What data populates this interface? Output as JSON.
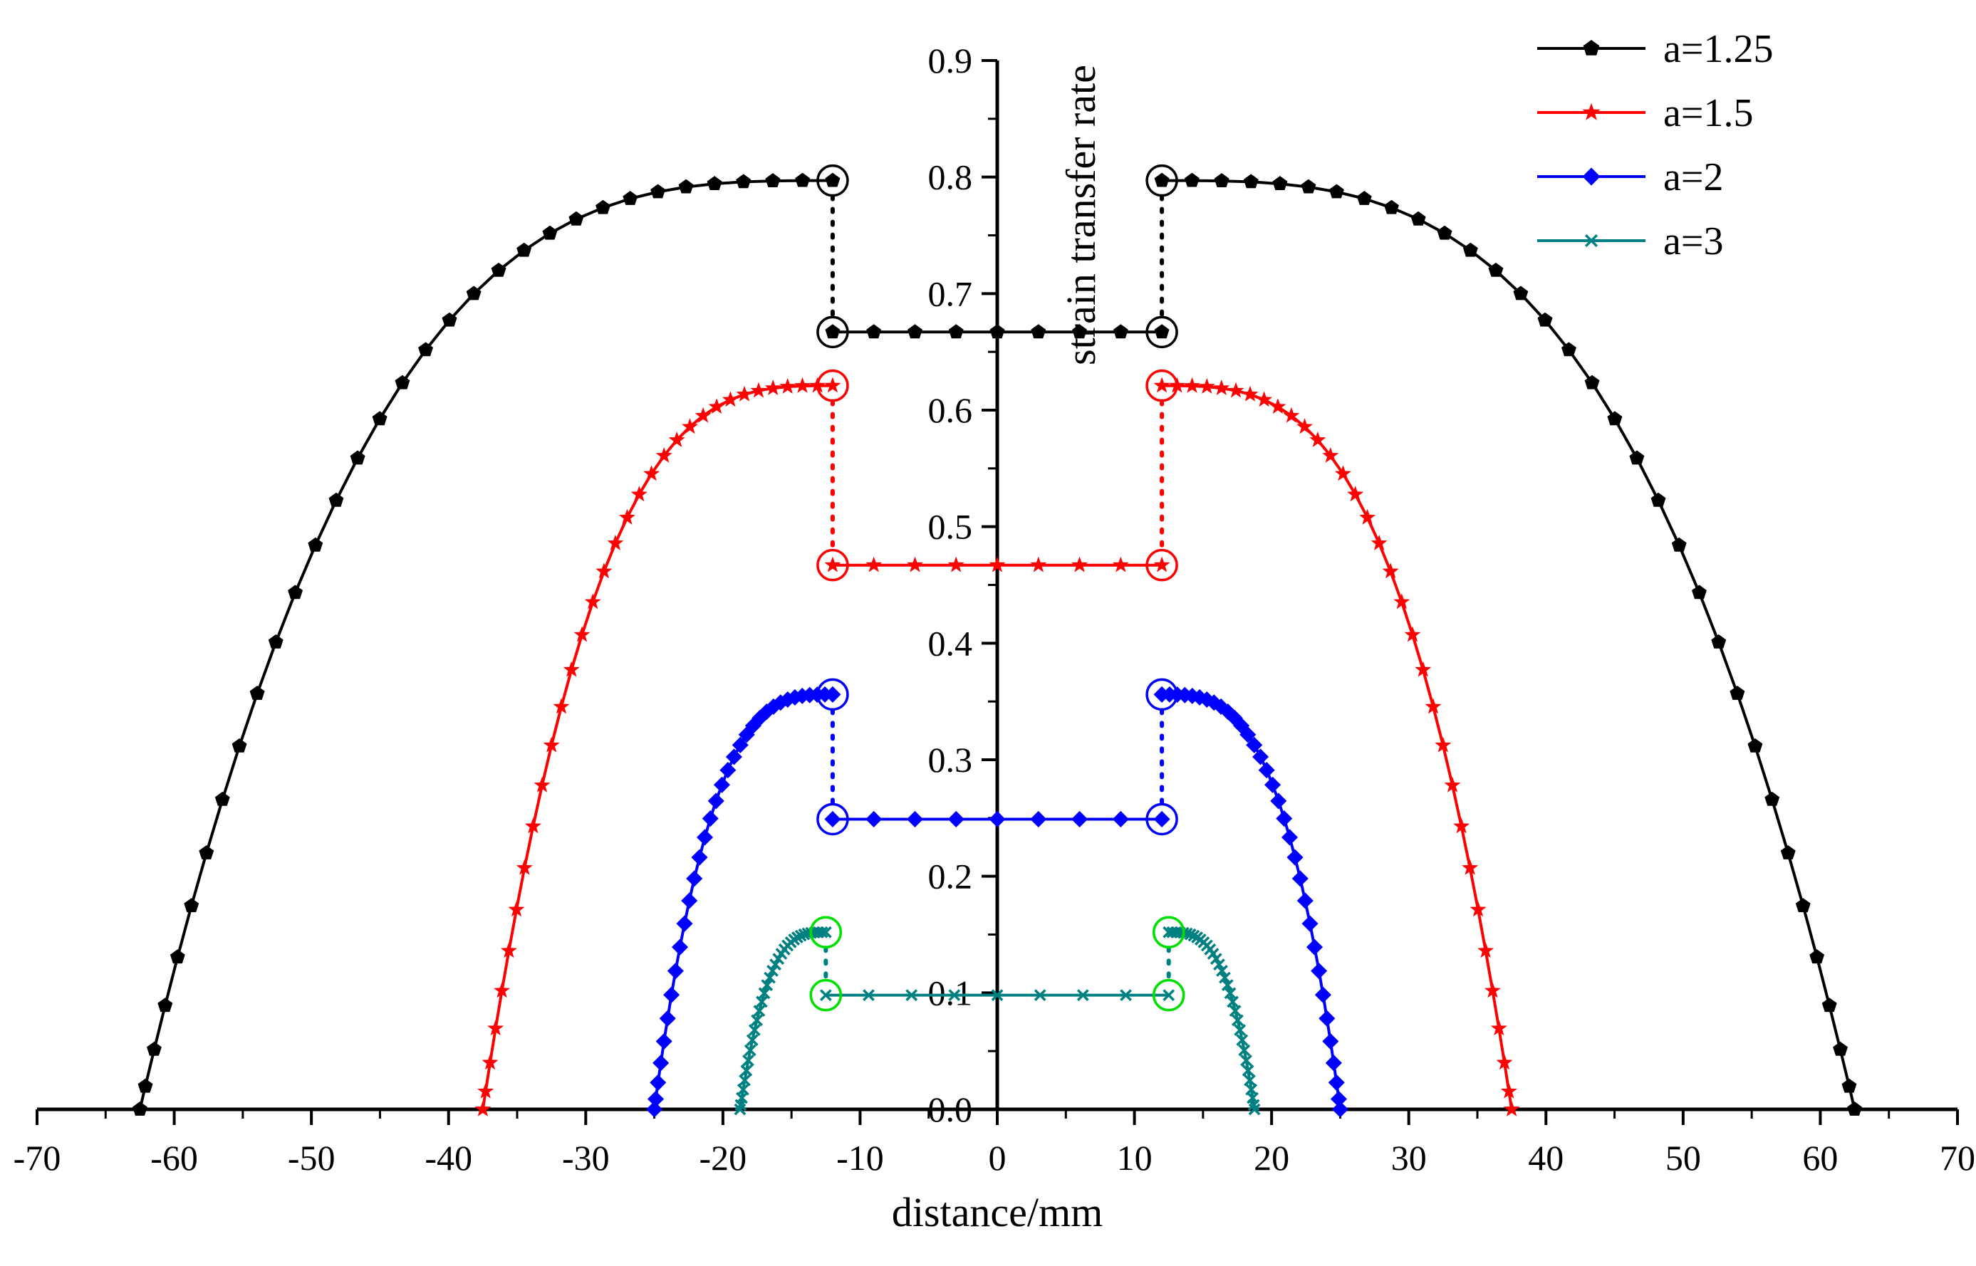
{
  "chart_data": {
    "type": "line",
    "xlabel": "distance/mm",
    "ylabel": "strain transfer rate",
    "xlim": [
      -70,
      70
    ],
    "ylim": [
      0.0,
      0.9
    ],
    "x_ticks": [
      -70,
      -60,
      -50,
      -40,
      -30,
      -20,
      -10,
      0,
      10,
      20,
      30,
      40,
      50,
      60,
      70
    ],
    "y_ticks": [
      "0.0",
      "0.1",
      "0.2",
      "0.3",
      "0.4",
      "0.5",
      "0.6",
      "0.7",
      "0.8",
      "0.9"
    ],
    "legend_position": "top-right",
    "series": [
      {
        "name": "a=1.25",
        "color": "#000000",
        "marker": "pentagon",
        "circle_color": "#000000",
        "center_value": 0.667,
        "edge_value": 0.797,
        "end": 62.5,
        "joint": 12.0
      },
      {
        "name": "a=1.5",
        "color": "#ff0000",
        "marker": "star",
        "circle_color": "#ff0000",
        "center_value": 0.467,
        "edge_value": 0.621,
        "end": 37.5,
        "joint": 12.0
      },
      {
        "name": "a=2",
        "color": "#0000ff",
        "marker": "diamond",
        "circle_color": "#0000ff",
        "center_value": 0.249,
        "edge_value": 0.356,
        "end": 25.0,
        "joint": 12.0
      },
      {
        "name": "a=3",
        "color": "#008080",
        "marker": "x",
        "circle_color": "#00e000",
        "center_value": 0.098,
        "edge_value": 0.152,
        "end": 18.75,
        "joint": 12.5
      }
    ]
  }
}
